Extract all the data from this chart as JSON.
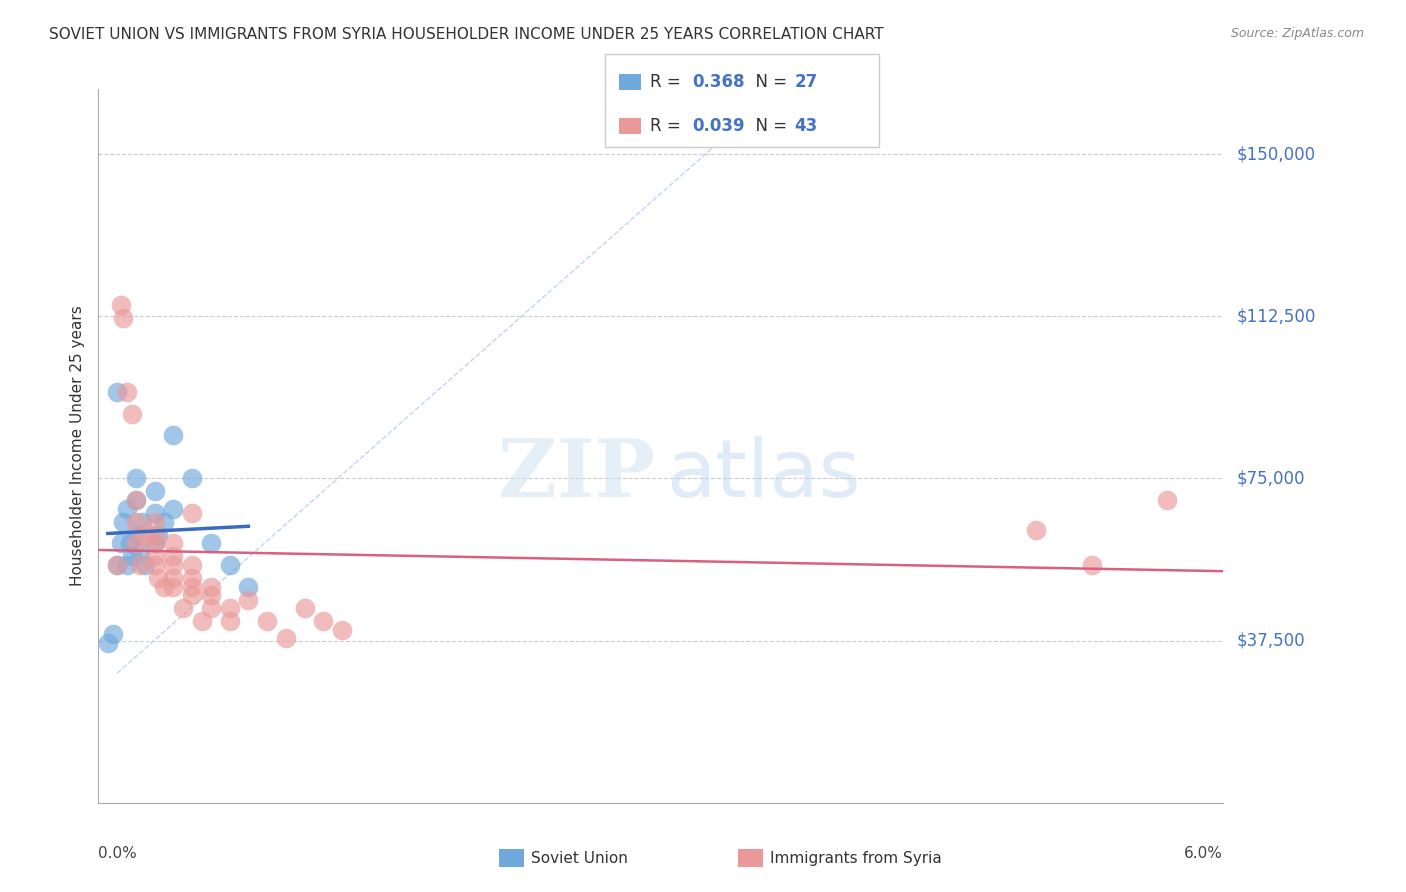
{
  "title": "SOVIET UNION VS IMMIGRANTS FROM SYRIA HOUSEHOLDER INCOME UNDER 25 YEARS CORRELATION CHART",
  "source": "Source: ZipAtlas.com",
  "ylabel": "Householder Income Under 25 years",
  "ytick_labels": [
    "$150,000",
    "$112,500",
    "$75,000",
    "$37,500"
  ],
  "ytick_values": [
    150000,
    112500,
    75000,
    37500
  ],
  "xmin": 0.0,
  "xmax": 0.06,
  "ymin": 0,
  "ymax": 165000,
  "r_soviet": 0.368,
  "n_soviet": 27,
  "r_syria": 0.039,
  "n_syria": 43,
  "color_soviet": "#6fa8dc",
  "color_syria": "#ea9999",
  "color_blue_line": "#3a6bbf",
  "color_pink_line": "#d96080",
  "color_dashed": "#a4c2f4",
  "soviet_x": [
    0.0005,
    0.0008,
    0.001,
    0.001,
    0.0012,
    0.0013,
    0.0015,
    0.0015,
    0.0017,
    0.0018,
    0.002,
    0.002,
    0.002,
    0.0022,
    0.0023,
    0.0025,
    0.003,
    0.003,
    0.003,
    0.0032,
    0.0035,
    0.004,
    0.004,
    0.005,
    0.006,
    0.007,
    0.008
  ],
  "soviet_y": [
    37000,
    39000,
    55000,
    95000,
    60000,
    65000,
    55000,
    68000,
    60000,
    57000,
    62000,
    70000,
    75000,
    58000,
    65000,
    55000,
    60000,
    67000,
    72000,
    62000,
    65000,
    68000,
    85000,
    75000,
    60000,
    55000,
    50000
  ],
  "syria_x": [
    0.001,
    0.0012,
    0.0013,
    0.0015,
    0.0018,
    0.002,
    0.002,
    0.002,
    0.0022,
    0.0025,
    0.003,
    0.003,
    0.003,
    0.003,
    0.003,
    0.0032,
    0.0035,
    0.004,
    0.004,
    0.004,
    0.004,
    0.004,
    0.0045,
    0.005,
    0.005,
    0.005,
    0.005,
    0.005,
    0.0055,
    0.006,
    0.006,
    0.006,
    0.007,
    0.007,
    0.008,
    0.009,
    0.01,
    0.011,
    0.012,
    0.013,
    0.05,
    0.053,
    0.057
  ],
  "syria_y": [
    55000,
    115000,
    112000,
    95000,
    90000,
    60000,
    65000,
    70000,
    55000,
    62000,
    55000,
    57000,
    60000,
    62000,
    65000,
    52000,
    50000,
    50000,
    52000,
    55000,
    57000,
    60000,
    45000,
    48000,
    50000,
    52000,
    55000,
    67000,
    42000,
    45000,
    48000,
    50000,
    45000,
    42000,
    47000,
    42000,
    38000,
    45000,
    42000,
    40000,
    63000,
    55000,
    70000
  ]
}
